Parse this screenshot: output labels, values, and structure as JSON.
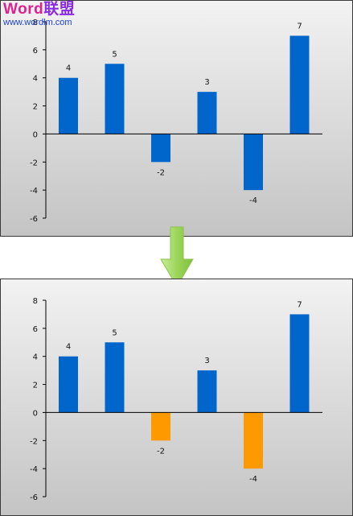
{
  "watermark": {
    "title_latin": "Word",
    "title_cjk": "联盟",
    "url": "www.wordlm.com"
  },
  "colors": {
    "bar_blue": "#0066cc",
    "bar_orange": "#ff9900",
    "arrow_green": "#9cd65a"
  },
  "chart_data": [
    {
      "type": "bar",
      "categories": [
        "",
        "",
        "",
        "",
        "",
        ""
      ],
      "values": [
        4,
        5,
        -2,
        3,
        -4,
        7
      ],
      "data_labels": [
        "4",
        "5",
        "-2",
        "3",
        "-4",
        "7"
      ],
      "bar_colors": [
        "#0066cc",
        "#0066cc",
        "#0066cc",
        "#0066cc",
        "#0066cc",
        "#0066cc"
      ],
      "ylim": [
        -6,
        8
      ],
      "yticks": [
        -6,
        -4,
        -2,
        0,
        2,
        4,
        6,
        8
      ],
      "ytick_labels": [
        "-6",
        "-4",
        "-2",
        "0",
        "2",
        "4",
        "6",
        "8"
      ],
      "grid": false,
      "title": "",
      "xlabel": "",
      "ylabel": ""
    },
    {
      "type": "bar",
      "categories": [
        "",
        "",
        "",
        "",
        "",
        ""
      ],
      "values": [
        4,
        5,
        -2,
        3,
        -4,
        7
      ],
      "data_labels": [
        "4",
        "5",
        "-2",
        "3",
        "-4",
        "7"
      ],
      "bar_colors": [
        "#0066cc",
        "#0066cc",
        "#ff9900",
        "#0066cc",
        "#ff9900",
        "#0066cc"
      ],
      "ylim": [
        -6,
        8
      ],
      "yticks": [
        -6,
        -4,
        -2,
        0,
        2,
        4,
        6,
        8
      ],
      "ytick_labels": [
        "-6",
        "-4",
        "-2",
        "0",
        "2",
        "4",
        "6",
        "8"
      ],
      "grid": false,
      "title": "",
      "xlabel": "",
      "ylabel": ""
    }
  ]
}
